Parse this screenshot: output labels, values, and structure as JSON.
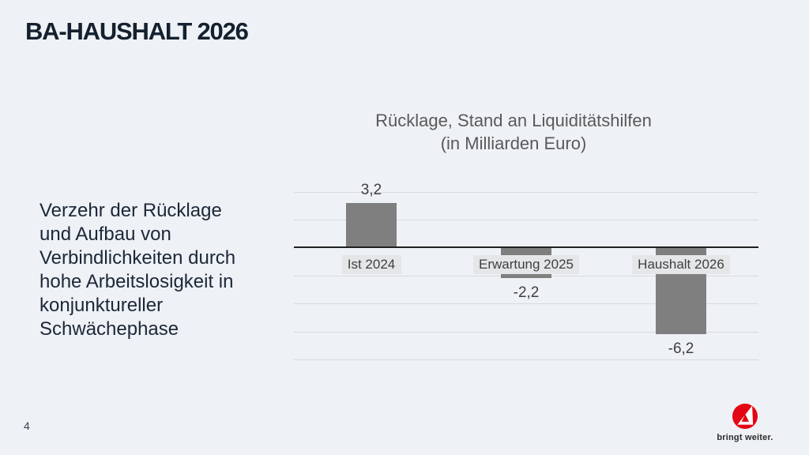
{
  "slide": {
    "title": "BA-HAUSHALT 2026",
    "body_text": "Verzehr der Rücklage\nund Aufbau von\nVerbindlichkeiten durch\nhohe Arbeitslosigkeit in\nkonjunktureller\nSchwächephase",
    "page_number": "4"
  },
  "chart_data": {
    "type": "bar",
    "title": "Rücklage, Stand an Liquiditätshilfen\n(in Milliarden Euro)",
    "categories": [
      "Ist 2024",
      "Erwartung 2025",
      "Haushalt 2026"
    ],
    "values": [
      3.2,
      -2.2,
      -6.2
    ],
    "value_labels": [
      "3,2",
      "-2,2",
      "-6,2"
    ],
    "ylabel": "",
    "xlabel": "",
    "ylim": [
      -8,
      4
    ],
    "grid_step": 2,
    "grid": true,
    "legend": "none",
    "bar_color": "#7f7f7f",
    "axis_line_color": "#1f1f1f",
    "category_label_bg": "#e5e6e8",
    "value_label_color": "#3f3f3f"
  },
  "logo": {
    "tagline": "bringt weiter.",
    "brand_color": "#e30613"
  },
  "colors": {
    "background": "#eef1f5",
    "title": "#14202e",
    "body_text": "#1c2738",
    "chart_title": "#595959",
    "gridline": "#d8dbde"
  }
}
